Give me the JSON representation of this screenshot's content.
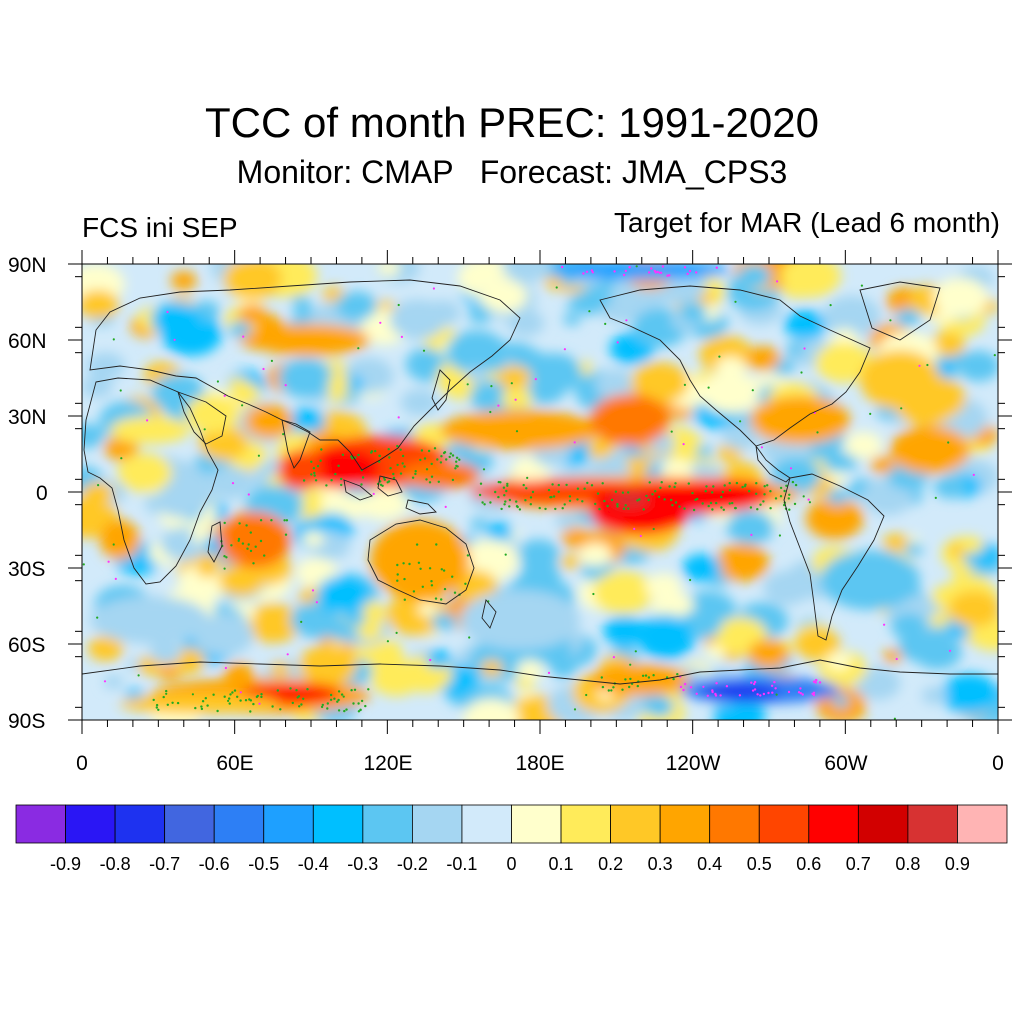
{
  "title": "TCC of month PREC: 1991-2020",
  "subtitle": "Monitor: CMAP   Forecast: JMA_CPS3",
  "left_label": "FCS ini SEP",
  "right_label": "Target for MAR (Lead 6 month)",
  "lat_labels": [
    "90N",
    "60N",
    "30N",
    "0",
    "30S",
    "60S",
    "90S"
  ],
  "lon_labels": [
    "0",
    "60E",
    "120E",
    "180E",
    "120W",
    "60W",
    "0"
  ],
  "colorbar": {
    "labels": [
      "-0.9",
      "-0.8",
      "-0.7",
      "-0.6",
      "-0.5",
      "-0.4",
      "-0.3",
      "-0.2",
      "-0.1",
      "0",
      "0.1",
      "0.2",
      "0.3",
      "0.4",
      "0.5",
      "0.6",
      "0.7",
      "0.8",
      "0.9"
    ],
    "colors": [
      "#8a2be2",
      "#2a16f5",
      "#1e32f0",
      "#4166e0",
      "#2d7ff5",
      "#1ea0ff",
      "#00bfff",
      "#5cc6f2",
      "#a5d6f2",
      "#d2eafa",
      "#ffffcc",
      "#ffeb5a",
      "#ffc826",
      "#ffa500",
      "#ff7800",
      "#ff4500",
      "#ff0000",
      "#d20000",
      "#d73232",
      "#ffb4b4"
    ]
  },
  "significance_colors": {
    "positive": "#22aa22",
    "negative": "#ff33ff"
  }
}
